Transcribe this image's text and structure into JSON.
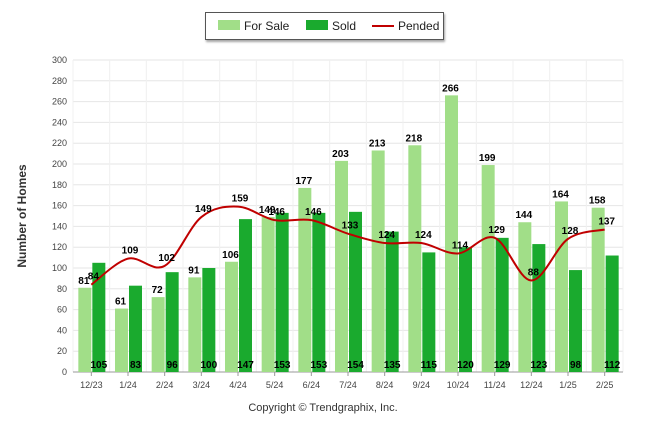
{
  "chart_data": {
    "type": "bar",
    "categories": [
      "12/23",
      "1/24",
      "2/24",
      "3/24",
      "4/24",
      "5/24",
      "6/24",
      "7/24",
      "8/24",
      "9/24",
      "10/24",
      "11/24",
      "12/24",
      "1/25",
      "2/25"
    ],
    "series": [
      {
        "name": "For Sale",
        "type": "bar",
        "color": "#a1de88",
        "values": [
          81,
          61,
          72,
          91,
          106,
          149,
          177,
          203,
          213,
          218,
          266,
          199,
          144,
          164,
          158
        ]
      },
      {
        "name": "Sold",
        "type": "bar",
        "color": "#1aaa2e",
        "values": [
          105,
          83,
          96,
          100,
          147,
          153,
          153,
          154,
          135,
          115,
          120,
          129,
          123,
          98,
          112
        ]
      },
      {
        "name": "Pended",
        "type": "line",
        "color": "#c00000",
        "values": [
          84,
          109,
          102,
          149,
          159,
          146,
          146,
          133,
          124,
          124,
          114,
          129,
          88,
          128,
          137
        ]
      }
    ],
    "title": "",
    "xlabel": "",
    "ylabel": "Number of Homes",
    "ylim": [
      0,
      300
    ],
    "yticks": [
      0,
      20,
      40,
      60,
      80,
      100,
      120,
      140,
      160,
      180,
      200,
      220,
      240,
      260,
      280,
      300
    ],
    "grid": true,
    "legend": "top-center"
  },
  "legend": {
    "for_sale": "For Sale",
    "sold": "Sold",
    "pended": "Pended",
    "colors": {
      "for_sale": "#a1de88",
      "sold": "#1aaa2e",
      "pended": "#c00000"
    }
  },
  "copyright": "Copyright © Trendgraphix, Inc."
}
